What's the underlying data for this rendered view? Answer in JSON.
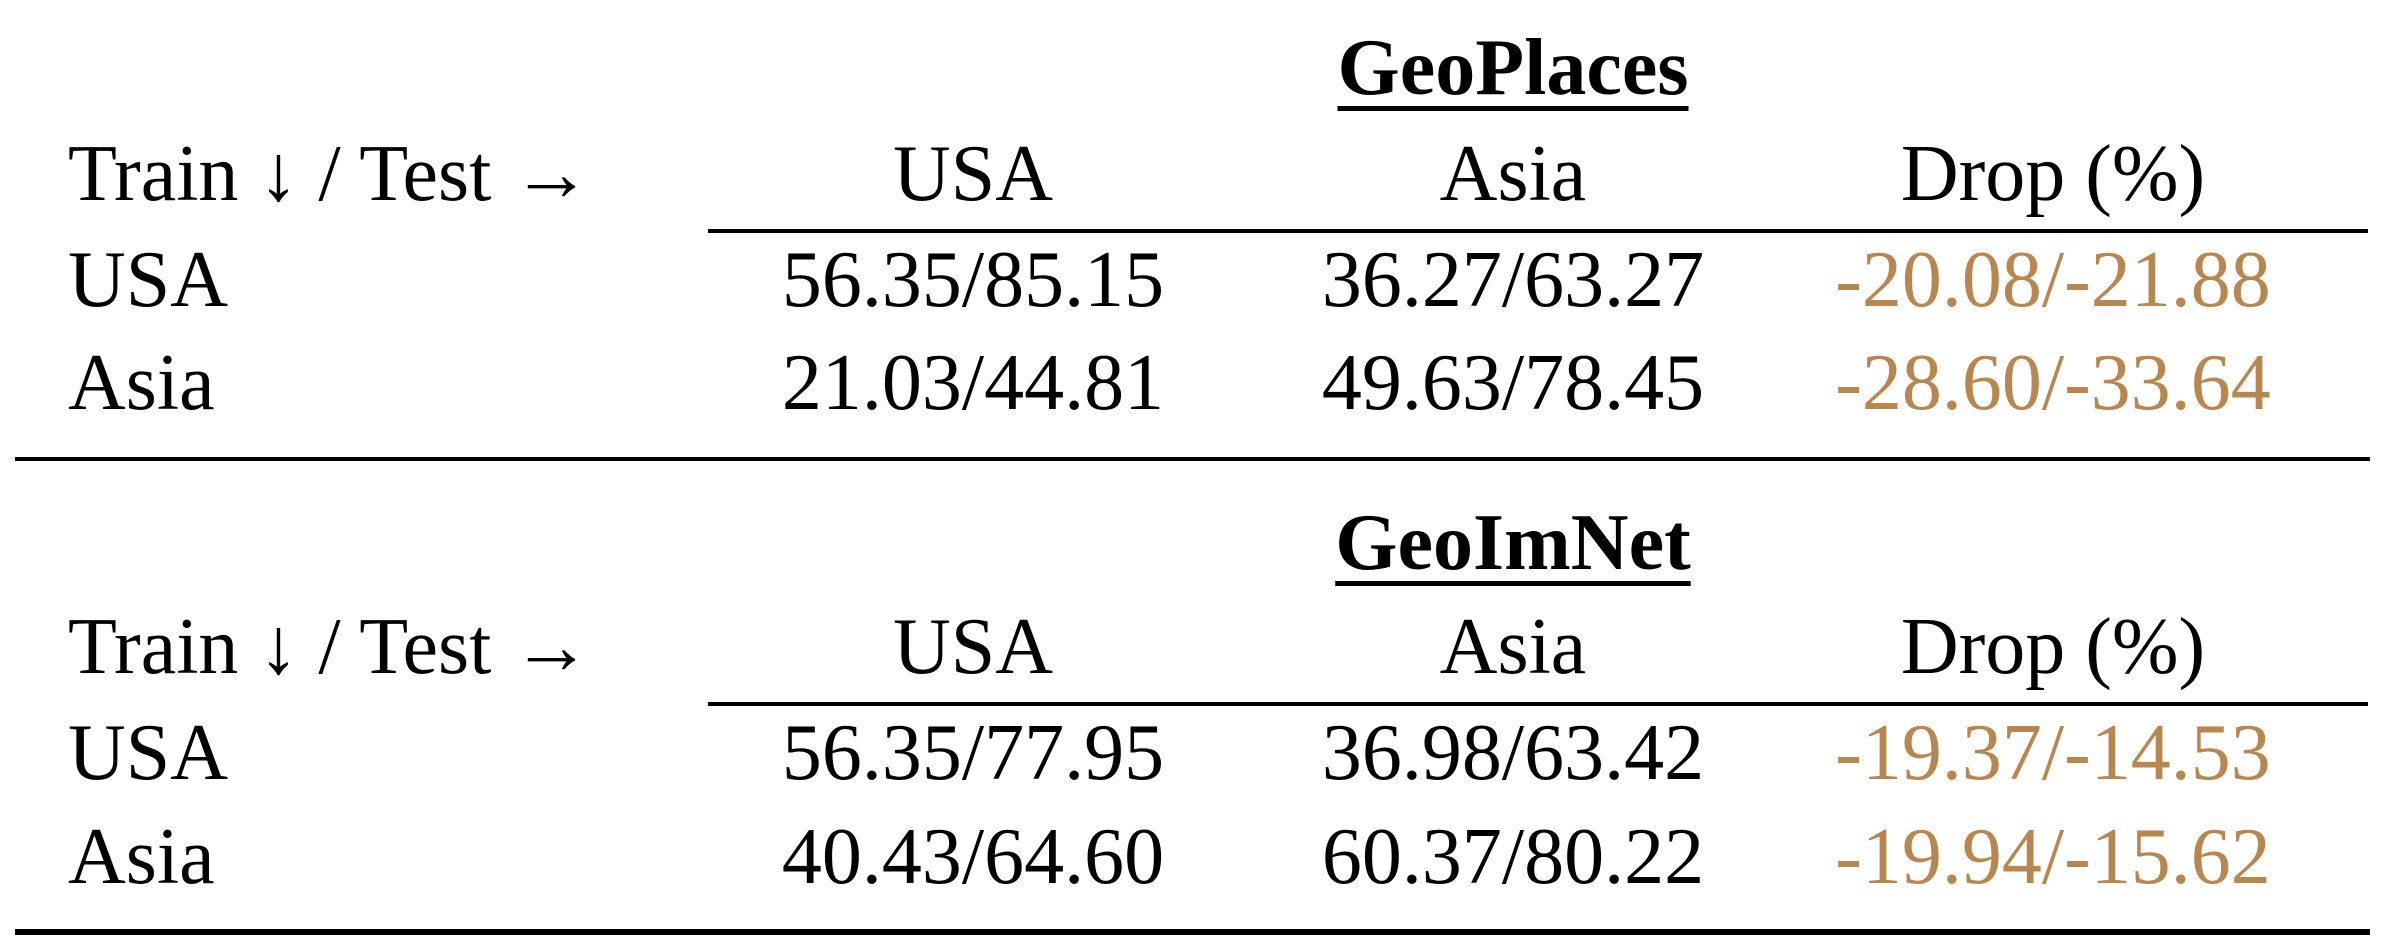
{
  "colors": {
    "text": "#000000",
    "drop": "#b8864f"
  },
  "sections": [
    {
      "title": "GeoPlaces",
      "header": {
        "corner": "Train ↓ / Test →",
        "columns": [
          "USA",
          "Asia",
          "Drop (%)"
        ]
      },
      "rows": [
        {
          "train": "USA",
          "usa": "56.35/85.15",
          "asia": "36.27/63.27",
          "drop": "-20.08/-21.88"
        },
        {
          "train": "Asia",
          "usa": "21.03/44.81",
          "asia": "49.63/78.45",
          "drop": "-28.60/-33.64"
        }
      ]
    },
    {
      "title": "GeoImNet",
      "header": {
        "corner": "Train ↓ / Test →",
        "columns": [
          "USA",
          "Asia",
          "Drop (%)"
        ]
      },
      "rows": [
        {
          "train": "USA",
          "usa": "56.35/77.95",
          "asia": "36.98/63.42",
          "drop": "-19.37/-14.53"
        },
        {
          "train": "Asia",
          "usa": "40.43/64.60",
          "asia": "60.37/80.22",
          "drop": "-19.94/-15.62"
        }
      ]
    }
  ]
}
